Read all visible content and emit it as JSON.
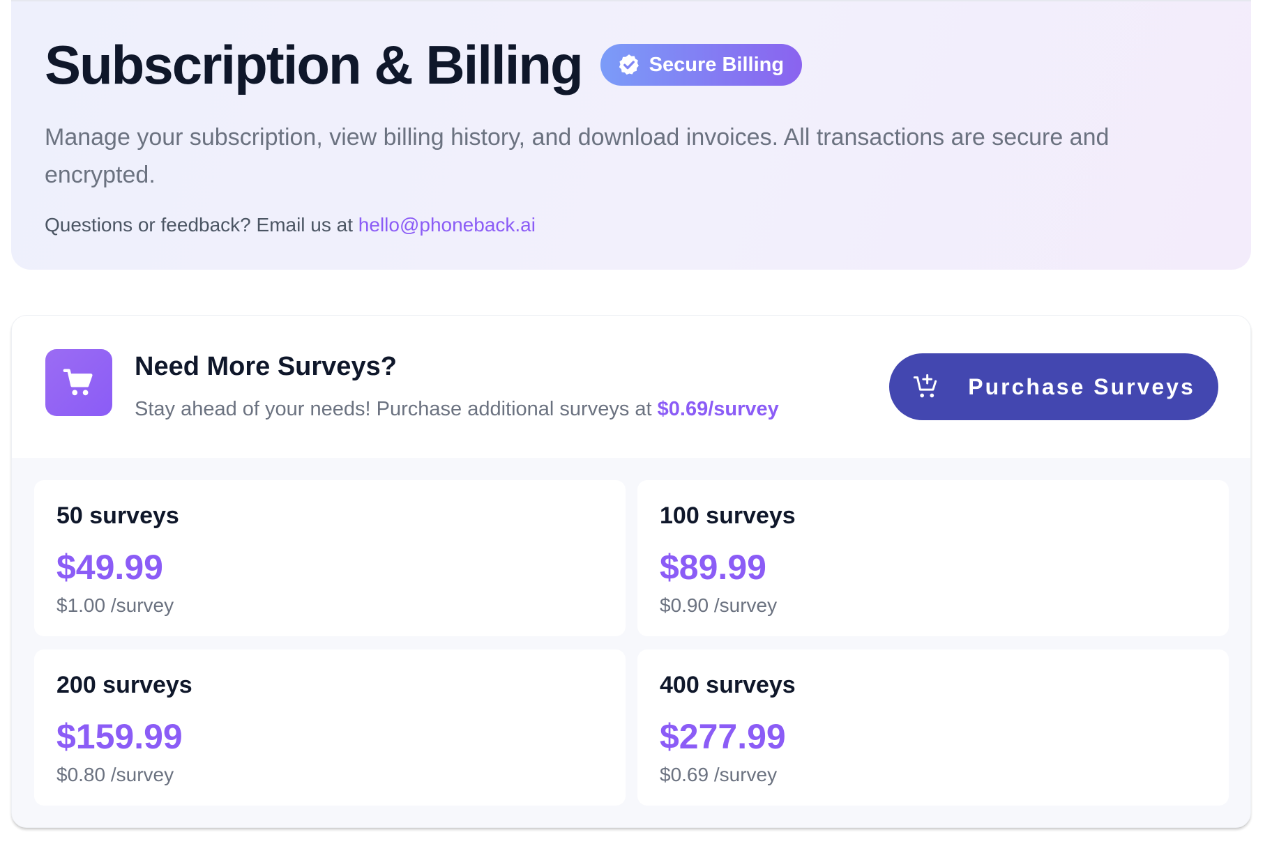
{
  "header": {
    "title": "Subscription & Billing",
    "badge_label": "Secure Billing",
    "description": "Manage your subscription, view billing history, and download invoices. All transactions are secure and encrypted.",
    "contact_prefix": "Questions or feedback? Email us at ",
    "contact_email": "hello@phoneback.ai"
  },
  "promo": {
    "title": "Need More Surveys?",
    "text_prefix": "Stay ahead of your needs! Purchase additional surveys at ",
    "rate": "$0.69/survey",
    "button_label": "Purchase Surveys"
  },
  "packages": [
    {
      "quantity": "50 surveys",
      "price": "$49.99",
      "unit_price": "$1.00 /survey"
    },
    {
      "quantity": "100 surveys",
      "price": "$89.99",
      "unit_price": "$0.90 /survey"
    },
    {
      "quantity": "200 surveys",
      "price": "$159.99",
      "unit_price": "$0.80 /survey"
    },
    {
      "quantity": "400 surveys",
      "price": "$277.99",
      "unit_price": "$0.69 /survey"
    }
  ],
  "icons": {
    "badge": "verified-check-icon",
    "promo": "shopping-cart-icon",
    "button": "cart-add-icon"
  },
  "colors": {
    "accent": "#8b5cf6",
    "button": "#4347b0",
    "title": "#0f172a",
    "muted": "#6b7280"
  }
}
